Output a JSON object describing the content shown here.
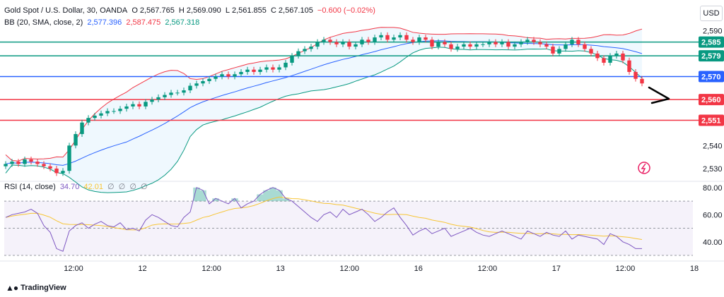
{
  "header": {
    "symbol": "Gold Spot / U.S. Dollar, 30, OANDA",
    "o_label": "O",
    "o_value": "2,567.765",
    "h_label": "H",
    "h_value": "2,569.090",
    "l_label": "L",
    "l_value": "2,561.855",
    "c_label": "C",
    "c_value": "2,567.105",
    "change": "−0.600 (−0.02%)"
  },
  "bb_legend": {
    "label": "BB (20, SMA, close, 2)",
    "basis": "2,577.396",
    "upper": "2,587.475",
    "lower": "2,567.318"
  },
  "rsi_legend": {
    "label": "RSI (14, close)",
    "rsi": "34.70",
    "ma": "42.01",
    "zeros": [
      "∅",
      "∅",
      "∅",
      "∅"
    ]
  },
  "currency": "USD",
  "brand": "TradingView",
  "colors": {
    "green": "#089981",
    "red": "#f23645",
    "blue": "#2962ff",
    "rsi": "#7e57c2",
    "rsi_ma": "#f7c535"
  },
  "chart_data": {
    "type": "candlestick",
    "y_axis": {
      "ticks": [
        "2,590",
        "2,540",
        "2,530"
      ],
      "range": [
        2526,
        2591
      ]
    },
    "levels": [
      {
        "label": "2,585",
        "value": 2585,
        "color": "green"
      },
      {
        "label": "2,579",
        "value": 2579,
        "color": "green"
      },
      {
        "label": "2,570",
        "value": 2570,
        "color": "blue"
      },
      {
        "label": "2,560",
        "value": 2560,
        "color": "red"
      },
      {
        "label": "2,551",
        "value": 2551,
        "color": "red"
      }
    ],
    "x_axis": {
      "ticks": [
        "12:00",
        "12",
        "12:00",
        "13",
        "12:00",
        "16",
        "12:00",
        "17",
        "12:00",
        "18"
      ]
    },
    "candles_close": [
      2532,
      2533,
      2532,
      2534,
      2533,
      2532,
      2531,
      2530,
      2528,
      2529,
      2540,
      2545,
      2550,
      2552,
      2553,
      2554,
      2555,
      2555,
      2556,
      2557,
      2558,
      2557,
      2559,
      2560,
      2561,
      2562,
      2563,
      2563,
      2564,
      2566,
      2567,
      2568,
      2569,
      2570,
      2571,
      2570,
      2571,
      2572,
      2573,
      2572,
      2573,
      2574,
      2573,
      2574,
      2576,
      2579,
      2581,
      2582,
      2583,
      2585,
      2586,
      2585,
      2584,
      2585,
      2583,
      2584,
      2586,
      2585,
      2587,
      2588,
      2586,
      2587,
      2588,
      2586,
      2585,
      2587,
      2586,
      2583,
      2585,
      2584,
      2582,
      2583,
      2584,
      2583,
      2584,
      2584,
      2585,
      2584,
      2585,
      2583,
      2584,
      2585,
      2586,
      2585,
      2584,
      2583,
      2580,
      2582,
      2584,
      2586,
      2584,
      2582,
      2580,
      2578,
      2576,
      2579,
      2580,
      2577,
      2572,
      2569,
      2567
    ],
    "bb_upper_end": 2587.475,
    "bb_basis_end": 2577.396,
    "bb_lower_end": 2567.318,
    "rsi": {
      "ticks": [
        "80.00",
        "60.00",
        "40.00"
      ],
      "range": [
        30,
        82
      ],
      "band": [
        30,
        70
      ],
      "values": [
        58,
        60,
        61,
        62,
        64,
        61,
        52,
        47,
        35,
        33,
        48,
        52,
        54,
        50,
        53,
        55,
        52,
        51,
        54,
        49,
        50,
        48,
        56,
        60,
        58,
        55,
        52,
        51,
        58,
        62,
        80,
        78,
        68,
        72,
        70,
        68,
        72,
        65,
        68,
        70,
        75,
        78,
        80,
        78,
        72,
        70,
        66,
        62,
        58,
        55,
        60,
        62,
        58,
        64,
        60,
        62,
        64,
        60,
        55,
        58,
        62,
        65,
        58,
        52,
        45,
        48,
        50,
        46,
        48,
        50,
        44,
        46,
        48,
        50,
        47,
        45,
        44,
        46,
        48,
        46,
        44,
        42,
        48,
        46,
        44,
        47,
        45,
        44,
        48,
        42,
        45,
        44,
        43,
        42,
        38,
        46,
        44,
        40,
        38,
        35,
        35
      ],
      "ma_end": 42.01,
      "last": 34.7
    }
  }
}
